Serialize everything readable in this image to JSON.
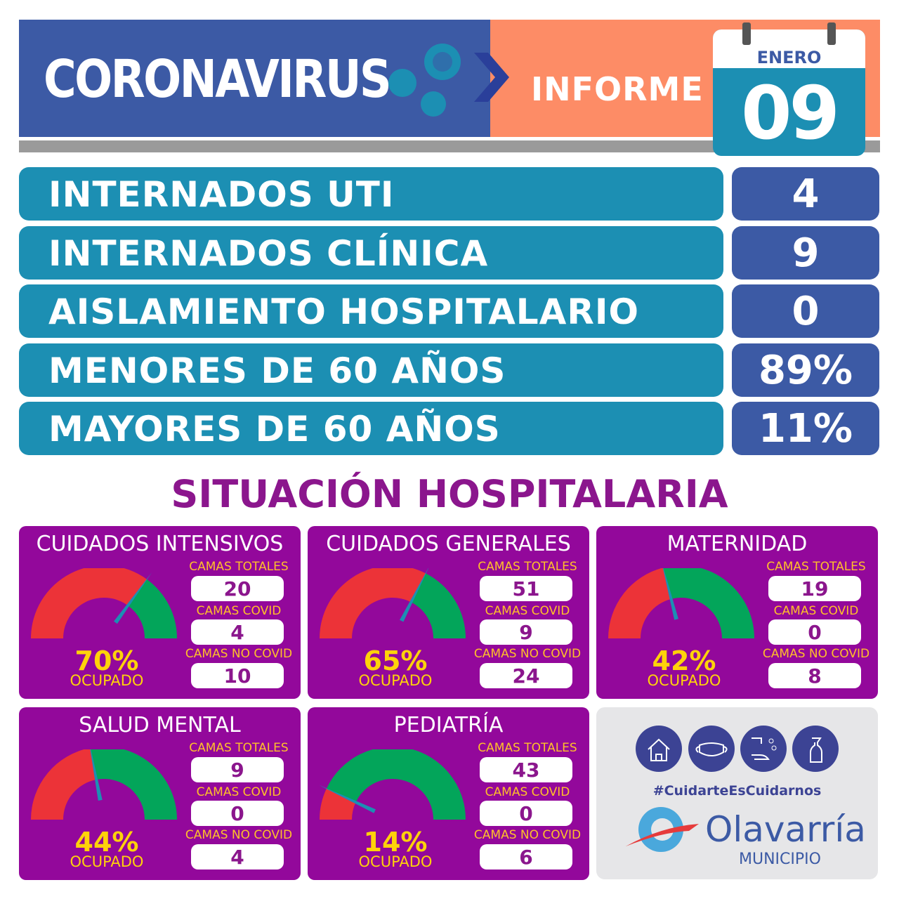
{
  "header": {
    "title": "CORONAVIRUS",
    "subtitle": "INFORME",
    "calendar": {
      "month": "ENERO",
      "day": "09"
    }
  },
  "stats": [
    {
      "label": "INTERNADOS UTI",
      "value": "4"
    },
    {
      "label": "INTERNADOS CLÍNICA",
      "value": "9"
    },
    {
      "label": "AISLAMIENTO HOSPITALARIO",
      "value": "0"
    },
    {
      "label": "MENORES DE 60 AÑOS",
      "value": "89%"
    },
    {
      "label": "MAYORES DE 60 AÑOS",
      "value": "11%"
    }
  ],
  "section_title": "SITUACIÓN HOSPITALARIA",
  "labels": {
    "totales": "CAMAS TOTALES",
    "covid": "CAMAS COVID",
    "nocovid": "CAMAS NO COVID",
    "ocupado": "OCUPADO"
  },
  "panels": [
    {
      "title": "CUIDADOS INTENSIVOS",
      "percent": "70%",
      "occupancy": 70,
      "totales": "20",
      "covid": "4",
      "nocovid": "10"
    },
    {
      "title": "CUIDADOS GENERALES",
      "percent": "65%",
      "occupancy": 65,
      "totales": "51",
      "covid": "9",
      "nocovid": "24"
    },
    {
      "title": "MATERNIDAD",
      "percent": "42%",
      "occupancy": 42,
      "totales": "19",
      "covid": "0",
      "nocovid": "8"
    },
    {
      "title": "SALUD MENTAL",
      "percent": "44%",
      "occupancy": 44,
      "totales": "9",
      "covid": "0",
      "nocovid": "4"
    },
    {
      "title": "PEDIATRÍA",
      "percent": "14%",
      "occupancy": 14,
      "totales": "43",
      "covid": "0",
      "nocovid": "6"
    }
  ],
  "brand": {
    "hashtag": "#CuidarteEsCuidarnos",
    "name": "Olavarría",
    "sub": "MUNICIPIO",
    "icons": [
      "house-icon",
      "mask-icon",
      "handwash-icon",
      "spray-bottle-icon"
    ]
  },
  "colors": {
    "blue": "#3c5aa5",
    "teal": "#1c8fb3",
    "orange": "#fd8c66",
    "purple": "#93089b",
    "red": "#ec3338",
    "green": "#03a55a",
    "yellow": "#ffd20a"
  }
}
